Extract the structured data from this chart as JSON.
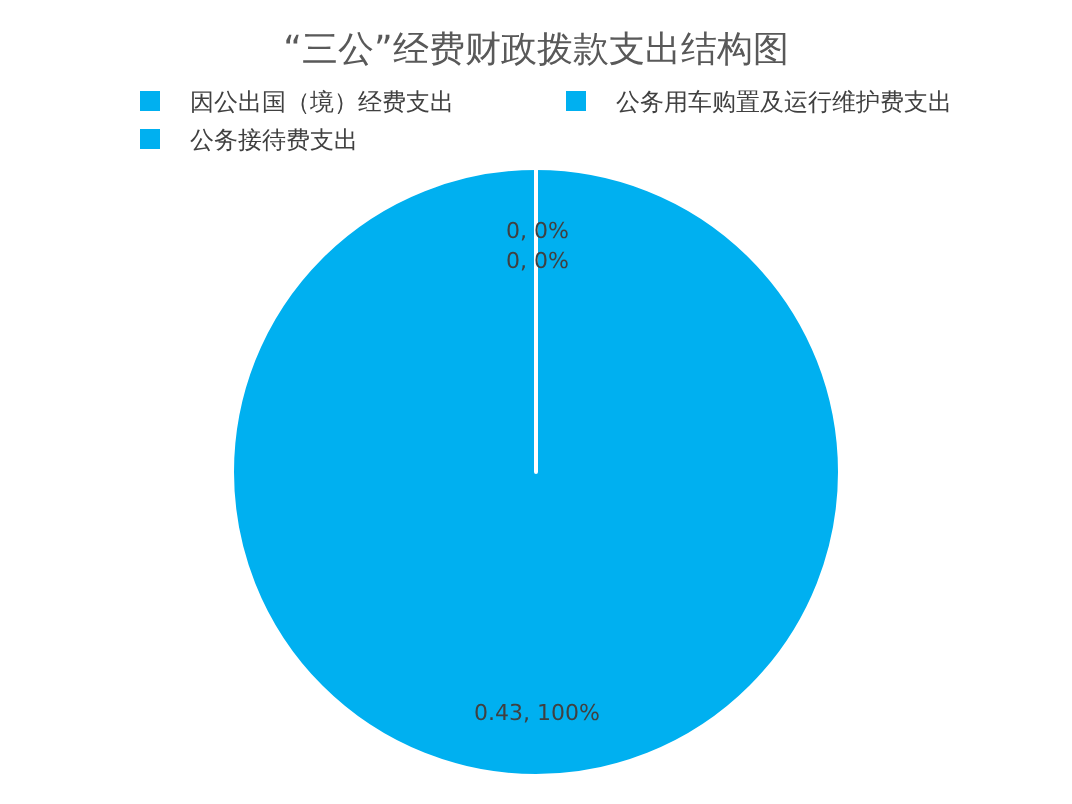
{
  "chart_data": {
    "type": "pie",
    "title": "“三公”经费财政拨款支出结构图",
    "categories": [
      "因公出国（境）经费支出",
      "公务用车购置及运行维护费支出",
      "公务接待费支出"
    ],
    "values": [
      0,
      0.43,
      0
    ],
    "colors": [
      "#00b0f0",
      "#00b0f0",
      "#00b0f0"
    ],
    "value_labels": [
      "0, 0%",
      "0.43, 100%",
      "0, 0%"
    ],
    "legend": "top"
  }
}
